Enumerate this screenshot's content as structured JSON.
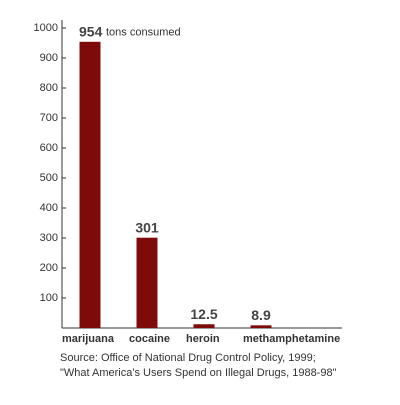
{
  "chart_data": {
    "type": "bar",
    "categories": [
      "marijuana",
      "cocaine",
      "heroin",
      "methamphetamine"
    ],
    "values": [
      954,
      301,
      12.5,
      8.9
    ],
    "color": "#7f0a0a",
    "annotation": "tons consumed",
    "source": [
      "Source: Office of National Drug Control Policy, 1999;",
      "\"What America's Users Spend on Illegal Drugs, 1988-98\""
    ],
    "ylim": [
      0,
      1000
    ],
    "yticks": [
      100,
      200,
      300,
      400,
      500,
      600,
      700,
      800,
      900,
      1000
    ]
  }
}
